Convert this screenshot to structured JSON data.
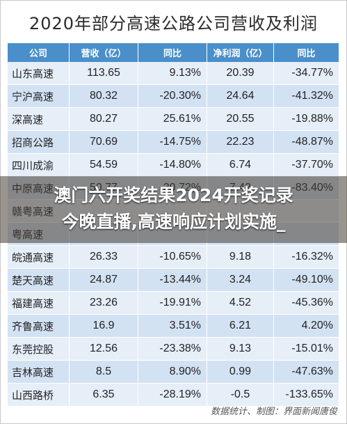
{
  "title": "2020年部分高速公路公司营收及利润",
  "table": {
    "headers": [
      "公司",
      "营收（亿）",
      "同比",
      "净利润（亿）",
      "同比"
    ],
    "rows": [
      [
        "山东高速",
        "113.65",
        "9.13%",
        "20.39",
        "-34.77%"
      ],
      [
        "宁沪高速",
        "80.32",
        "-20.30%",
        "24.64",
        "-41.32%"
      ],
      [
        "深高速",
        "80.27",
        "25.61%",
        "20.55",
        "-19.88%"
      ],
      [
        "招商公路",
        "70.69",
        "-14.75%",
        "22.23",
        "-48.87%"
      ],
      [
        "四川成渝",
        "54.59",
        "-14.80%",
        "6.74",
        "-37.70%"
      ],
      [
        "中原高速",
        "50.77",
        "-20.72%",
        "7.42",
        "-83.40%"
      ],
      [
        "赣粤高速",
        "",
        "",
        "",
        ""
      ],
      [
        "粤高速",
        "",
        "",
        "",
        ""
      ],
      [
        "皖通高速",
        "26.33",
        "-10.65%",
        "9.18",
        "-16.32%"
      ],
      [
        "楚天高速",
        "24.87",
        "-13.44%",
        "3.24",
        "-49.10%"
      ],
      [
        "福建高速",
        "23.26",
        "-19.91%",
        "4.52",
        "-45.36%"
      ],
      [
        "齐鲁高速",
        "16.9",
        "3.51%",
        "6.21",
        "4.20%"
      ],
      [
        "东莞控股",
        "12.56",
        "-23.38%",
        "9.13",
        "-15.01%"
      ],
      [
        "吉林高速",
        "8.5",
        "8.90%",
        "0.99",
        "-47.63%"
      ],
      [
        "山西路桥",
        "6.35",
        "-28.19%",
        "-0.5",
        "-133.65%"
      ]
    ]
  },
  "source": "数据统计、制图：界面新闻唐俊",
  "banner": {
    "line1": "澳门六开奖结果2024开奖记录",
    "line2": "今晚直播,高速响应计划实施_"
  },
  "colors": {
    "header_bg": "#4a8fc9",
    "row_light": "#e6eef8",
    "row_dark": "#d3e2f3"
  }
}
